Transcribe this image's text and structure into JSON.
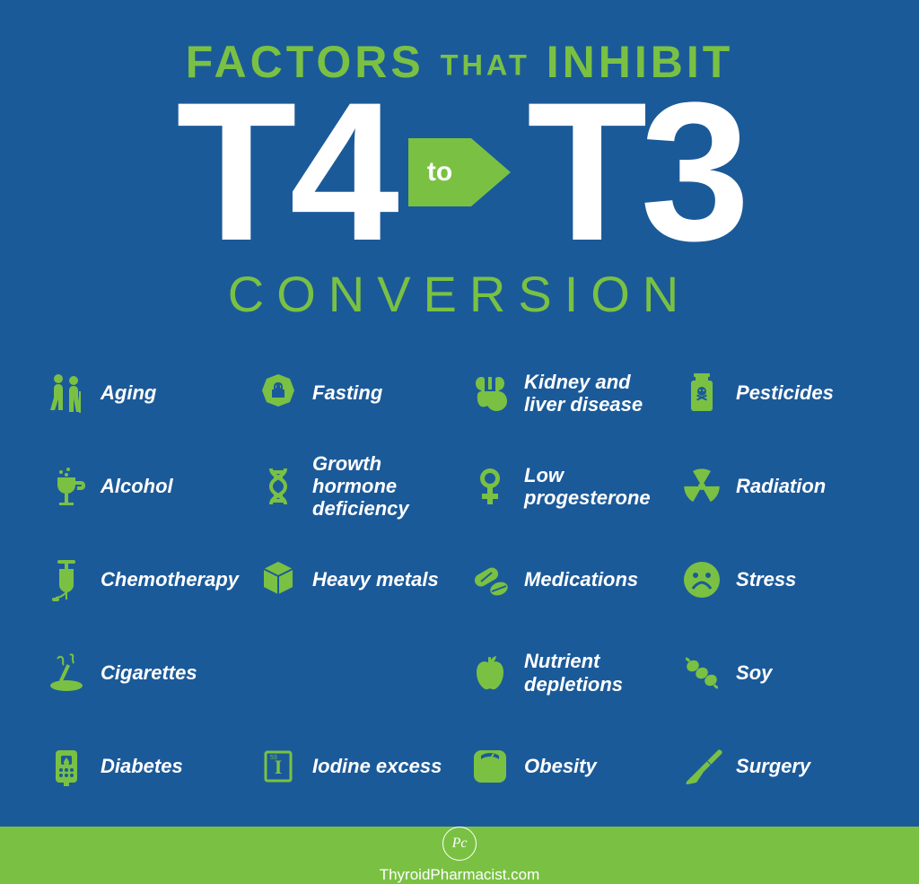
{
  "colors": {
    "background": "#1b5a99",
    "accent": "#7ac143",
    "white": "#ffffff",
    "footer_bg": "#7ac143"
  },
  "title": {
    "line1_a": "FACTORS",
    "line1_b": "THAT",
    "line1_c": "INHIBIT",
    "line1_fontsize": 50,
    "line1_color": "#7ac143",
    "t4": "T4",
    "to": "to",
    "t3": "T3",
    "t4t3_fontsize": 220,
    "t4t3_color": "#ffffff",
    "arrow_color": "#7ac143",
    "line3": "CONVERSION",
    "line3_fontsize": 56,
    "line3_color": "#7ac143"
  },
  "items": [
    {
      "label": "Aging",
      "icon": "aging"
    },
    {
      "label": "Alcohol",
      "icon": "alcohol"
    },
    {
      "label": "Chemotherapy",
      "icon": "chemo"
    },
    {
      "label": "Cigarettes",
      "icon": "cigarettes"
    },
    {
      "label": "Diabetes",
      "icon": "diabetes"
    },
    {
      "label": "Fasting",
      "icon": "fasting"
    },
    {
      "label": "Growth hormone deficiency",
      "icon": "dna"
    },
    {
      "label": "Heavy metals",
      "icon": "cube"
    },
    {
      "label": "Iodine excess",
      "icon": "iodine"
    },
    {
      "label": "Kidney and liver disease",
      "icon": "organs"
    },
    {
      "label": "Low progesterone",
      "icon": "female"
    },
    {
      "label": "Medications",
      "icon": "pills"
    },
    {
      "label": "Nutrient depletions",
      "icon": "apple"
    },
    {
      "label": "Obesity",
      "icon": "scale"
    },
    {
      "label": "Pesticides",
      "icon": "poison"
    },
    {
      "label": "Radiation",
      "icon": "radiation"
    },
    {
      "label": "Stress",
      "icon": "sad"
    },
    {
      "label": "Soy",
      "icon": "soy"
    },
    {
      "label": "Surgery",
      "icon": "scalpel"
    }
  ],
  "grid_blank_slot": 8,
  "icon_color": "#7ac143",
  "label_color": "#ffffff",
  "label_fontsize": 22,
  "footer": {
    "logo": "Pc",
    "text": "ThyroidPharmacist.com"
  }
}
